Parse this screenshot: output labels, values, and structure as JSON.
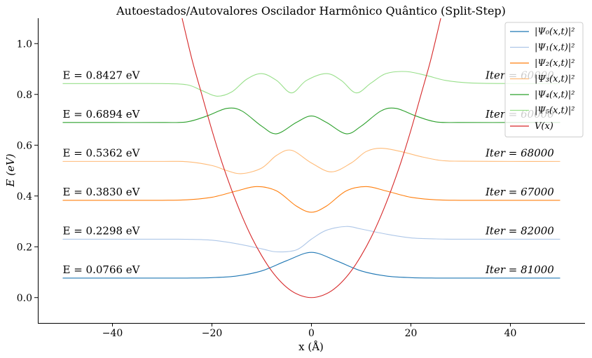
{
  "chart_data": {
    "type": "line",
    "title": "Autoestados/Autovalores Oscilador Harmônico Quântico (Split-Step)",
    "xlabel": "x (Å)",
    "ylabel": "E (eV)",
    "xlim": [
      -55,
      55
    ],
    "ylim": [
      -0.1,
      1.1
    ],
    "xticks": [
      -40,
      -20,
      0,
      20,
      40
    ],
    "xtick_labels": [
      "−40",
      "−20",
      "0",
      "20",
      "40"
    ],
    "yticks": [
      0.0,
      0.2,
      0.4,
      0.6,
      0.8,
      1.0
    ],
    "ytick_labels": [
      "0.0",
      "0.2",
      "0.4",
      "0.6",
      "0.8",
      "1.0"
    ],
    "grid": false,
    "legend_position": "top-right",
    "potential": {
      "name": "V(x)",
      "color": "#d62728",
      "x": [
        -26.0,
        -24,
        -22,
        -20,
        -18,
        -16,
        -14,
        -12,
        -10,
        -8,
        -6,
        -4,
        -2,
        0,
        2,
        4,
        6,
        8,
        10,
        12,
        14,
        16,
        18,
        20,
        22,
        24,
        26.0
      ],
      "y": [
        1.1,
        0.937,
        0.797,
        0.659,
        0.533,
        0.422,
        0.323,
        0.237,
        0.165,
        0.105,
        0.059,
        0.026,
        0.007,
        0.0,
        0.007,
        0.026,
        0.059,
        0.105,
        0.165,
        0.237,
        0.323,
        0.422,
        0.533,
        0.659,
        0.797,
        0.937,
        1.1
      ]
    },
    "series": [
      {
        "name": "|Ψ₀(x,t)|²",
        "color": "#1f77b4",
        "energy_label": "E = 0.0766 eV",
        "iter_label": "Iter = 81000",
        "x": [
          -50,
          -40,
          -30,
          -25,
          -20,
          -15,
          -10,
          -5,
          0,
          5,
          10,
          15,
          20,
          25,
          30,
          40,
          50
        ],
        "y": [
          0.0766,
          0.0766,
          0.0766,
          0.0768,
          0.0785,
          0.085,
          0.105,
          0.145,
          0.178,
          0.145,
          0.105,
          0.085,
          0.0785,
          0.0768,
          0.0766,
          0.0766,
          0.0766
        ]
      },
      {
        "name": "|Ψ₁(x,t)|²",
        "color": "#aec7e8",
        "energy_label": "E = 0.2298 eV",
        "iter_label": "Iter = 82000",
        "x": [
          -50,
          -40,
          -30,
          -25,
          -20,
          -15,
          -10,
          -7,
          -3,
          0,
          3,
          7,
          10,
          15,
          20,
          25,
          30,
          40,
          50
        ],
        "y": [
          0.2298,
          0.2298,
          0.2298,
          0.2295,
          0.226,
          0.212,
          0.192,
          0.18,
          0.188,
          0.23,
          0.265,
          0.28,
          0.27,
          0.25,
          0.235,
          0.231,
          0.2298,
          0.2298,
          0.2298
        ]
      },
      {
        "name": "|Ψ₂(x,t)|²",
        "color": "#ff7f0e",
        "energy_label": "E = 0.3830 eV",
        "iter_label": "Iter = 67000",
        "x": [
          -50,
          -40,
          -30,
          -25,
          -20,
          -15,
          -11,
          -7,
          -3,
          0,
          3,
          7,
          11,
          15,
          20,
          25,
          30,
          40,
          50
        ],
        "y": [
          0.383,
          0.383,
          0.383,
          0.385,
          0.395,
          0.42,
          0.437,
          0.42,
          0.36,
          0.336,
          0.36,
          0.42,
          0.437,
          0.42,
          0.395,
          0.385,
          0.383,
          0.383,
          0.383
        ]
      },
      {
        "name": "|Ψ₃(x,t)|²",
        "color": "#ffbb78",
        "energy_label": "E = 0.5362 eV",
        "iter_label": "Iter = 68000",
        "x": [
          -50,
          -40,
          -30,
          -25,
          -20,
          -17,
          -14,
          -10,
          -7,
          -4,
          0,
          4,
          8,
          11,
          14,
          18,
          22,
          26,
          30,
          40,
          50
        ],
        "y": [
          0.5362,
          0.5362,
          0.5362,
          0.535,
          0.52,
          0.5,
          0.488,
          0.51,
          0.56,
          0.58,
          0.53,
          0.495,
          0.53,
          0.575,
          0.588,
          0.575,
          0.555,
          0.54,
          0.537,
          0.5362,
          0.5362
        ]
      },
      {
        "name": "|Ψ₄(x,t)|²",
        "color": "#2ca02c",
        "energy_label": "E = 0.6894 eV",
        "iter_label": "Iter = 60000",
        "x": [
          -50,
          -40,
          -30,
          -25,
          -21,
          -17,
          -14,
          -10,
          -7,
          -3,
          0,
          3,
          7,
          10,
          14,
          17,
          21,
          25,
          30,
          40,
          50
        ],
        "y": [
          0.6894,
          0.6894,
          0.6894,
          0.692,
          0.715,
          0.745,
          0.735,
          0.675,
          0.645,
          0.69,
          0.715,
          0.69,
          0.645,
          0.675,
          0.735,
          0.745,
          0.715,
          0.692,
          0.6894,
          0.6894,
          0.6894
        ]
      },
      {
        "name": "|Ψ₅(x,t)|²",
        "color": "#98df8a",
        "energy_label": "E = 0.8427 eV",
        "iter_label": "Iter = 60000",
        "x": [
          -50,
          -40,
          -30,
          -25,
          -22,
          -19,
          -16,
          -13,
          -10,
          -7,
          -4,
          -1,
          3,
          6,
          9,
          12,
          15,
          19,
          23,
          27,
          32,
          40,
          50
        ],
        "y": [
          0.8427,
          0.8427,
          0.8427,
          0.838,
          0.815,
          0.793,
          0.81,
          0.86,
          0.882,
          0.855,
          0.806,
          0.855,
          0.882,
          0.855,
          0.806,
          0.845,
          0.882,
          0.89,
          0.875,
          0.855,
          0.845,
          0.8427,
          0.8427
        ]
      }
    ]
  }
}
